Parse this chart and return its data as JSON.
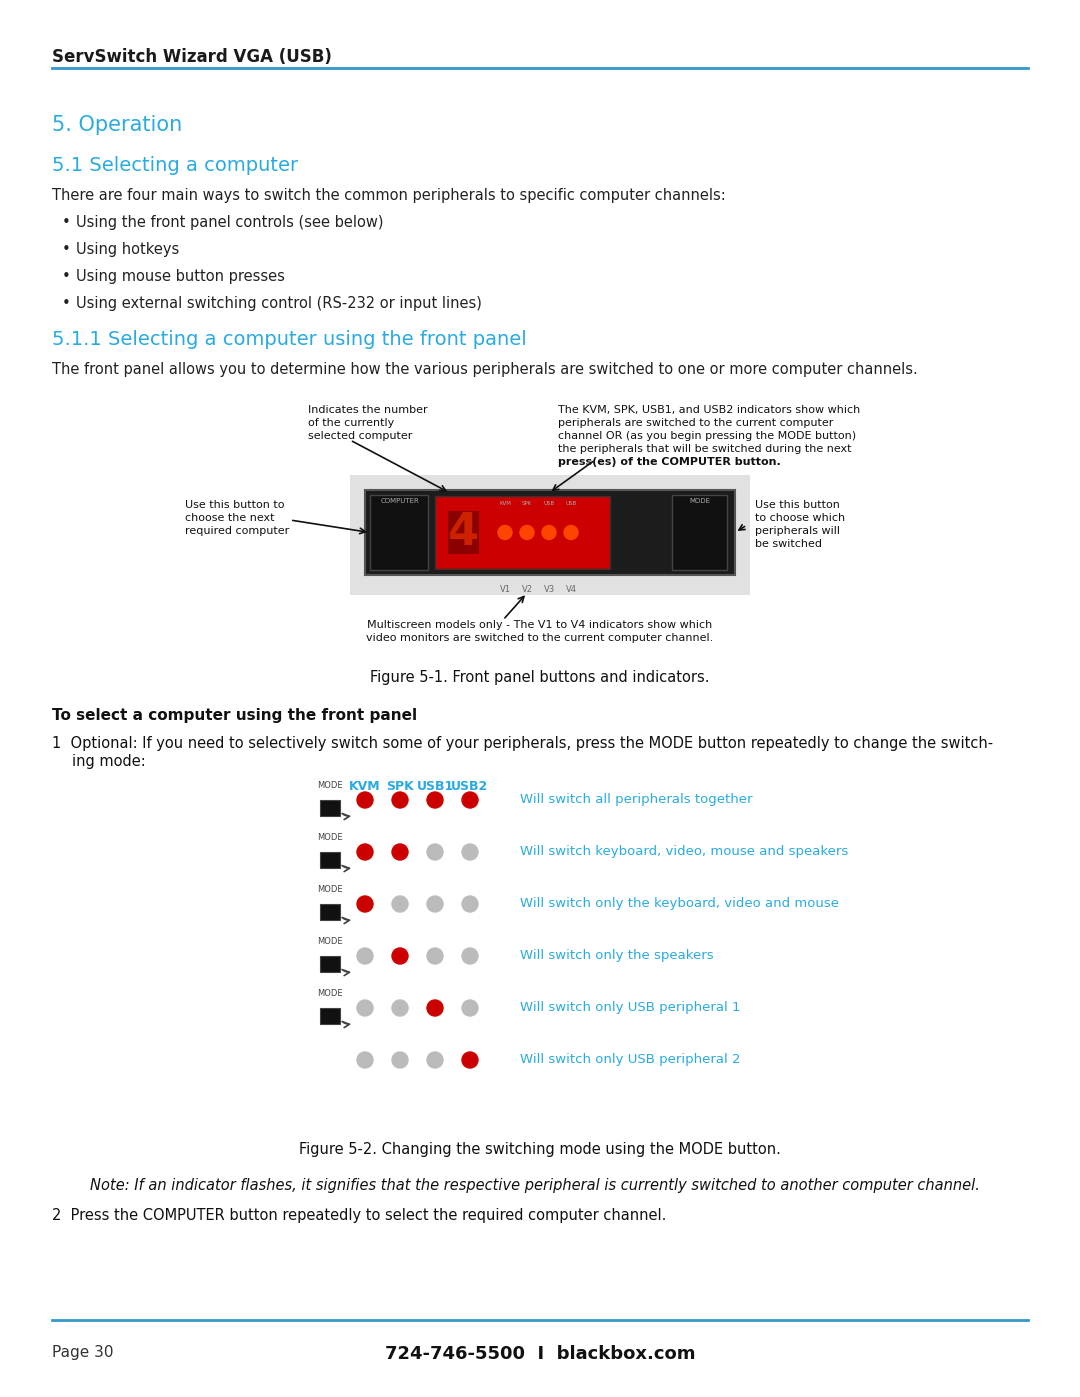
{
  "header_text": "ServSwitch Wizard VGA (USB)",
  "header_line_color": "#3399cc",
  "footer_line_color": "#3399cc",
  "footer_left": "Page 30",
  "footer_center": "724-746-5500  I  blackbox.com",
  "section_color": "#29abe2",
  "body_color": "#222222",
  "bg_color": "#ffffff",
  "section5_title": "5. Operation",
  "section51_title": "5.1 Selecting a computer",
  "section51_body": "There are four main ways to switch the common peripherals to specific computer channels:",
  "bullets": [
    "Using the front panel controls (see below)",
    "Using hotkeys",
    "Using mouse button presses",
    "Using external switching control (RS-232 or input lines)"
  ],
  "section511_title": "5.1.1 Selecting a computer using the front panel",
  "section511_body": "The front panel allows you to determine how the various peripherals are switched to one or more computer channels.",
  "fig1_caption": "Figure 5-1. Front panel buttons and indicators.",
  "fig2_caption": "Figure 5-2. Changing the switching mode using the MODE button.",
  "note_text": "Note: If an indicator flashes, it signifies that the respective peripheral is currently switched to another computer channel.",
  "step2_text": "2  Press the COMPUTER button repeatedly to select the required computer channel.",
  "bold_heading": "To select a computer using the front panel",
  "step1_text": "1  Optional: If you need to selectively switch some of your peripherals, press the MODE button repeatedly to change the switch-\n    ing mode:",
  "annot_left1": "Indicates the number",
  "annot_left2": "of the currently",
  "annot_left3": "selected computer",
  "annot_right1": "The KVM, SPK, USB1, and USB2 indicators show which",
  "annot_right2": "peripherals are switched to the current computer",
  "annot_right3": "channel OR (as you begin pressing the MODE button)",
  "annot_right4": "the peripherals that will be switched during the next",
  "annot_right5": "press(es) of the COMPUTER button.",
  "annot_bleft1": "Use this button to",
  "annot_bleft2": "choose the next",
  "annot_bleft3": "required computer",
  "annot_bright1": "Use this button",
  "annot_bright2": "to choose which",
  "annot_bright3": "peripherals will",
  "annot_bright4": "be switched",
  "annot_bottom1": "Multiscreen models only - The V1 to V4 indicators show which",
  "annot_bottom2": "video monitors are switched to the current computer channel.",
  "mode_table_headers": [
    "KVM",
    "SPK",
    "USB1",
    "USB2"
  ],
  "mode_table_rows": [
    {
      "dots": [
        "red",
        "red",
        "red",
        "red"
      ],
      "label": "Will switch all peripherals together",
      "has_mode": true
    },
    {
      "dots": [
        "red",
        "red",
        "gray",
        "gray"
      ],
      "label": "Will switch keyboard, video, mouse and speakers",
      "has_mode": true
    },
    {
      "dots": [
        "red",
        "gray",
        "gray",
        "gray"
      ],
      "label": "Will switch only the keyboard, video and mouse",
      "has_mode": true
    },
    {
      "dots": [
        "gray",
        "red",
        "gray",
        "gray"
      ],
      "label": "Will switch only the speakers",
      "has_mode": true
    },
    {
      "dots": [
        "gray",
        "gray",
        "red",
        "gray"
      ],
      "label": "Will switch only USB peripheral 1",
      "has_mode": true
    },
    {
      "dots": [
        "gray",
        "gray",
        "gray",
        "red"
      ],
      "label": "Will switch only USB peripheral 2",
      "has_mode": false
    }
  ]
}
